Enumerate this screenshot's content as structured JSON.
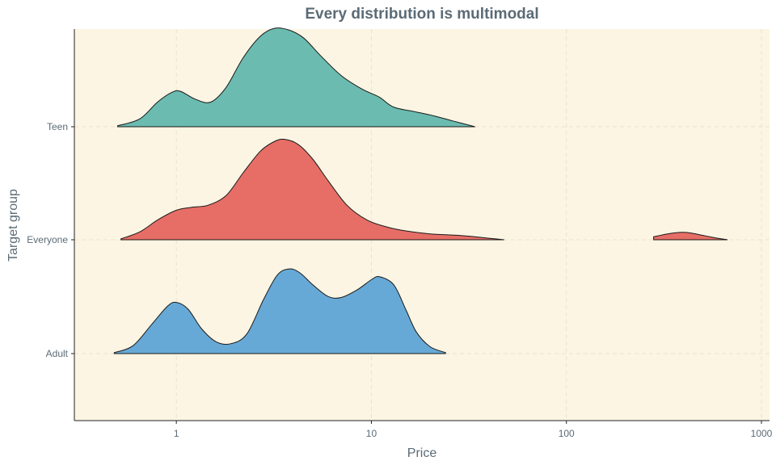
{
  "chart_data": {
    "type": "ridgeline",
    "title": "Every distribution is multimodal",
    "xlabel": "Price",
    "ylabel": "Target group",
    "x_scale": "log10",
    "xlim": [
      0.3,
      1100
    ],
    "x_ticks": [
      1,
      10,
      100,
      1000
    ],
    "x_tick_labels": [
      "1",
      "10",
      "100",
      "1000"
    ],
    "grid": true,
    "legend": "none",
    "categories": [
      "Adult",
      "Everyone",
      "Teen"
    ],
    "series": [
      {
        "name": "Adult",
        "color": "#67a9d6",
        "density_x": [
          0.48,
          0.6,
          0.75,
          0.9,
          1.0,
          1.15,
          1.35,
          1.6,
          1.9,
          2.3,
          2.8,
          3.3,
          3.8,
          4.3,
          5.0,
          6.0,
          7.0,
          8.5,
          10,
          11,
          13,
          15,
          17,
          20,
          24
        ],
        "density_y": [
          0.01,
          0.08,
          0.3,
          0.48,
          0.52,
          0.45,
          0.25,
          0.12,
          0.1,
          0.2,
          0.55,
          0.8,
          0.86,
          0.82,
          0.7,
          0.58,
          0.57,
          0.65,
          0.75,
          0.78,
          0.7,
          0.45,
          0.22,
          0.07,
          0.01
        ]
      },
      {
        "name": "Everyone",
        "color": "#e66e66",
        "density_x": [
          0.52,
          0.65,
          0.8,
          1.0,
          1.2,
          1.45,
          1.8,
          2.2,
          2.7,
          3.2,
          3.6,
          4.2,
          5.0,
          6.0,
          7.5,
          9.5,
          12,
          15,
          20,
          30,
          48,
          220,
          280,
          330,
          380,
          430,
          500,
          580,
          670
        ],
        "density_y": [
          0.01,
          0.08,
          0.2,
          0.3,
          0.33,
          0.35,
          0.45,
          0.68,
          0.9,
          1.0,
          1.02,
          0.97,
          0.82,
          0.6,
          0.35,
          0.2,
          0.13,
          0.09,
          0.06,
          0.04,
          0.0,
          0.0,
          0.03,
          0.06,
          0.075,
          0.07,
          0.045,
          0.02,
          0.0
        ]
      },
      {
        "name": "Teen",
        "color": "#6bbbb0",
        "density_x": [
          0.5,
          0.65,
          0.8,
          0.95,
          1.05,
          1.25,
          1.5,
          1.8,
          2.2,
          2.7,
          3.2,
          3.8,
          4.5,
          5.5,
          7.0,
          9.0,
          11,
          13,
          17,
          21,
          26,
          34
        ],
        "density_y": [
          0.01,
          0.08,
          0.25,
          0.35,
          0.36,
          0.28,
          0.25,
          0.4,
          0.7,
          0.92,
          1.0,
          0.98,
          0.9,
          0.72,
          0.52,
          0.38,
          0.3,
          0.2,
          0.15,
          0.11,
          0.06,
          0.0
        ]
      }
    ]
  }
}
